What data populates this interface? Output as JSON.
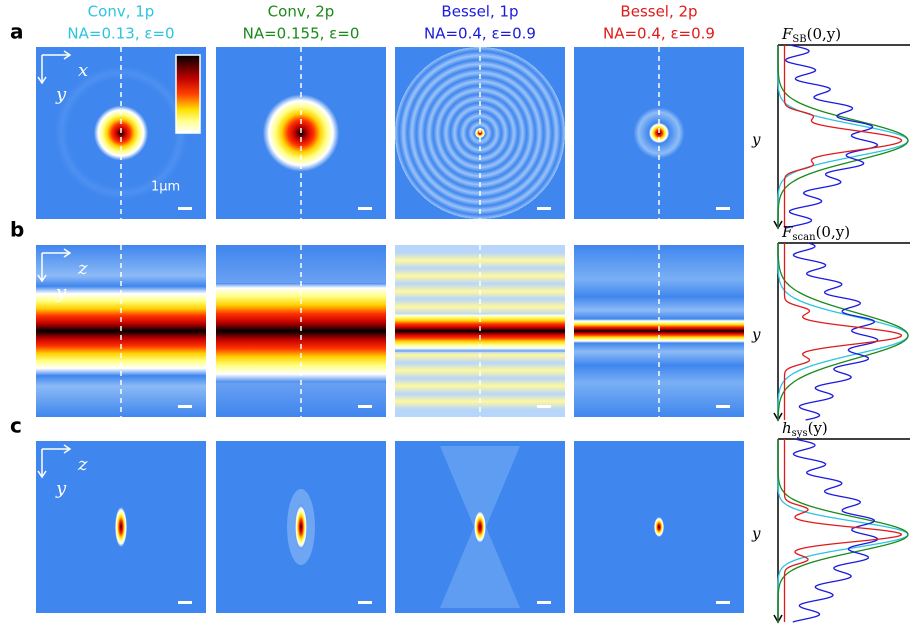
{
  "columns": [
    {
      "title": "Conv, 1p",
      "params": "NA=0.13, ε=0",
      "color": "#2cc4e0"
    },
    {
      "title": "Conv, 2p",
      "params": "NA=0.155, ε=0",
      "color": "#1a8a1a"
    },
    {
      "title": "Bessel, 1p",
      "params": "NA=0.4, ε=0.9",
      "color": "#1a1ae0"
    },
    {
      "title": "Bessel, 2p",
      "params": "NA=0.4, ε=0.9",
      "color": "#e01a1a"
    }
  ],
  "rows": [
    {
      "label": "a",
      "axes": [
        "x",
        "y"
      ],
      "profile": {
        "main": "F",
        "sub": "SB",
        "args": "(0,y)"
      },
      "profile_axis": "y"
    },
    {
      "label": "b",
      "axes": [
        "z",
        "y"
      ],
      "profile": {
        "main": "F",
        "sub": "scan",
        "args": "(0,y)"
      },
      "profile_axis": "y"
    },
    {
      "label": "c",
      "axes": [
        "z",
        "y"
      ],
      "profile": {
        "main": "h",
        "sub": "sys",
        "args": "(y)"
      },
      "profile_axis": "y"
    }
  ],
  "scale_label": "1μm"
}
